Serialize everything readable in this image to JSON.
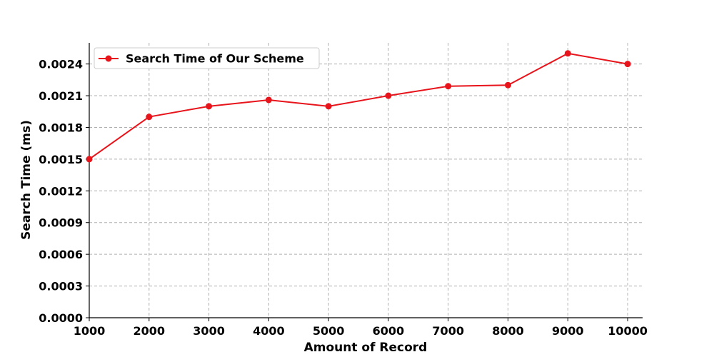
{
  "chart_data": {
    "type": "line",
    "xlabel": "Amount of Record",
    "ylabel": "Search Time (ms)",
    "x": [
      1000,
      2000,
      3000,
      4000,
      5000,
      6000,
      7000,
      8000,
      9000,
      10000
    ],
    "x_tick_labels": [
      "1000",
      "2000",
      "3000",
      "4000",
      "5000",
      "6000",
      "7000",
      "8000",
      "9000",
      "10000"
    ],
    "y_ticks": [
      0.0,
      0.0003,
      0.0006,
      0.0009,
      0.0012,
      0.0015,
      0.0018,
      0.0021,
      0.0024
    ],
    "y_tick_labels": [
      "0.0000",
      "0.0003",
      "0.0006",
      "0.0009",
      "0.0012",
      "0.0015",
      "0.0018",
      "0.0021",
      "0.0024"
    ],
    "xlim": [
      1000,
      10250
    ],
    "ylim": [
      0.0,
      0.0026
    ],
    "grid": true,
    "legend_position": "top-left",
    "series": [
      {
        "name": "Search Time of Our Scheme",
        "color": "#e8141b",
        "marker": "circle",
        "values": [
          0.0015,
          0.0019,
          0.002,
          0.00206,
          0.002,
          0.0021,
          0.00219,
          0.0022,
          0.0025,
          0.0024
        ]
      }
    ]
  }
}
